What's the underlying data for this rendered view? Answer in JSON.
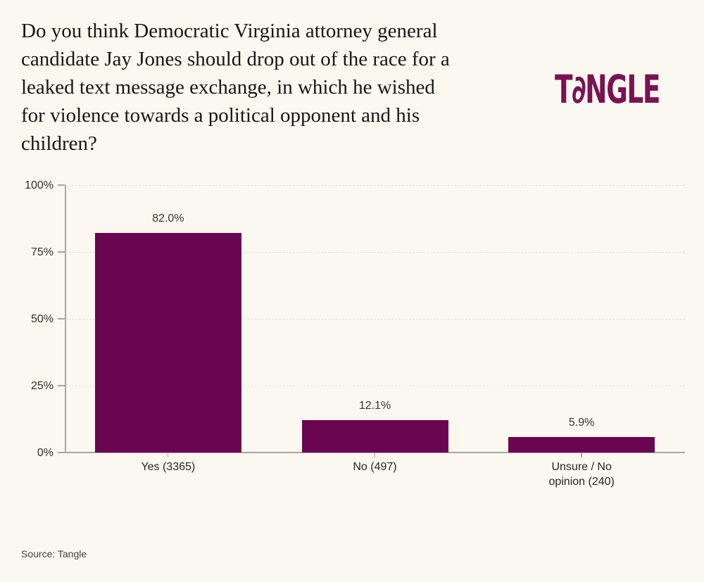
{
  "header": {
    "logo": {
      "text": "TANGLE",
      "part_t": "T",
      "stylized_a_glyph": "∂",
      "part_rest": "NGLE",
      "color": "#7A1253"
    }
  },
  "chart_data": {
    "type": "bar",
    "title": "Do you think Democratic Virginia attorney general\ncandidate Jay Jones should drop out of the race for a\nleaked text message exchange, in which he wished\nfor violence towards a political opponent and his\nchildren?",
    "categories": [
      "Yes (3365)",
      "No (497)",
      "Unsure / No\nopinion (240)"
    ],
    "category_names": [
      "Yes",
      "No",
      "Unsure / No opinion"
    ],
    "counts": [
      3365,
      497,
      240
    ],
    "values": [
      82.0,
      12.1,
      5.9
    ],
    "value_labels": [
      "82.0%",
      "12.1%",
      "5.9%"
    ],
    "xlabel": "",
    "ylabel": "",
    "ylim": [
      0,
      100
    ],
    "ytick_labels": [
      "0%",
      "25%",
      "50%",
      "75%",
      "100%"
    ],
    "ytick_values": [
      0,
      25,
      50,
      75,
      100
    ],
    "grid": "horizontal-dashed",
    "legend": "none",
    "bar_color": "#6A0552"
  },
  "footer": {
    "source": "Source: Tangle"
  },
  "colors": {
    "background": "#FAF8EF",
    "bar": "#6A0552",
    "logo": "#7A1253",
    "axis": "#A8A69E",
    "gridline": "#E6E1D5",
    "title_text": "#161616",
    "label_text": "#2E2E2E",
    "source_text": "#3F3F3F"
  }
}
